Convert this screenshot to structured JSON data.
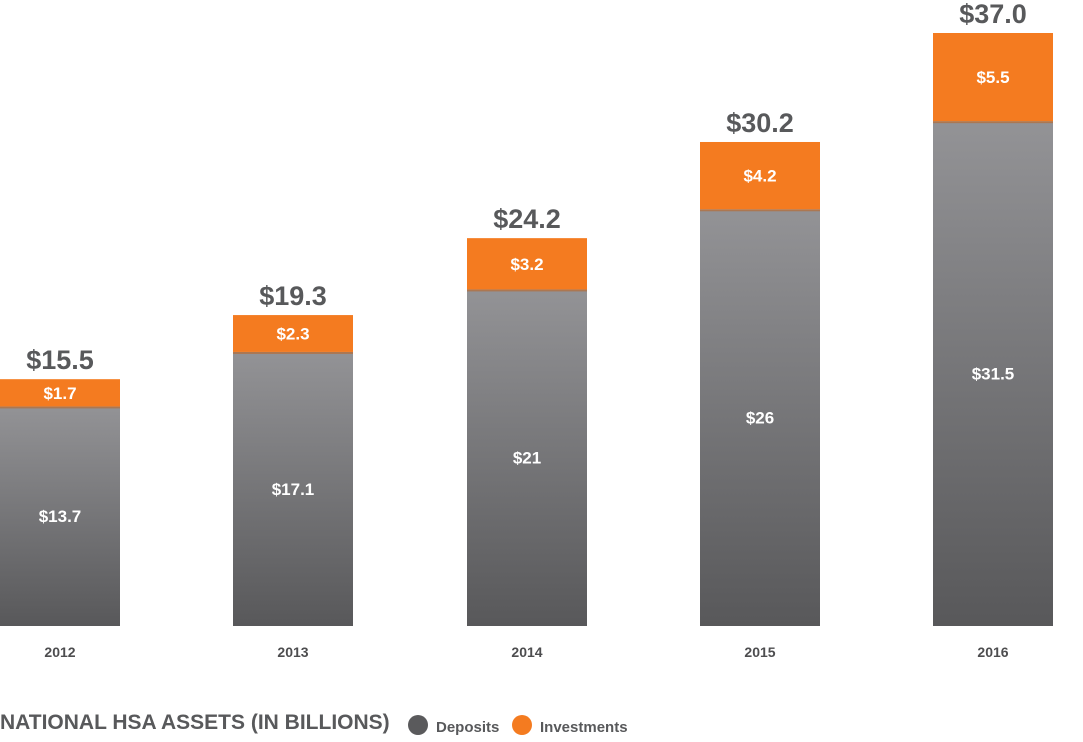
{
  "chart_data": {
    "type": "bar",
    "stacked": true,
    "title": "NATIONAL HSA ASSETS (IN BILLIONS)",
    "categories": [
      "2012",
      "2013",
      "2014",
      "2015",
      "2016"
    ],
    "series": [
      {
        "name": "Deposits",
        "values": [
          13.7,
          17.1,
          21,
          26,
          31.5
        ],
        "labels": [
          "$13.7",
          "$17.1",
          "$21",
          "$26",
          "$31.5"
        ],
        "color": "#5a5a5c"
      },
      {
        "name": "Investments",
        "values": [
          1.7,
          2.3,
          3.2,
          4.2,
          5.5
        ],
        "labels": [
          "$1.7",
          "$2.3",
          "$3.2",
          "$4.2",
          "$5.5"
        ],
        "color": "#f47b20"
      }
    ],
    "totals": [
      15.5,
      19.3,
      24.2,
      30.2,
      37.0
    ],
    "total_labels": [
      "$15.5",
      "$19.3",
      "$24.2",
      "$30.2",
      "$37.0"
    ],
    "ylim": [
      0,
      37.0
    ],
    "grid": false,
    "legend_position": "bottom",
    "deposit_gradient": [
      "#939396",
      "#58585a"
    ]
  }
}
